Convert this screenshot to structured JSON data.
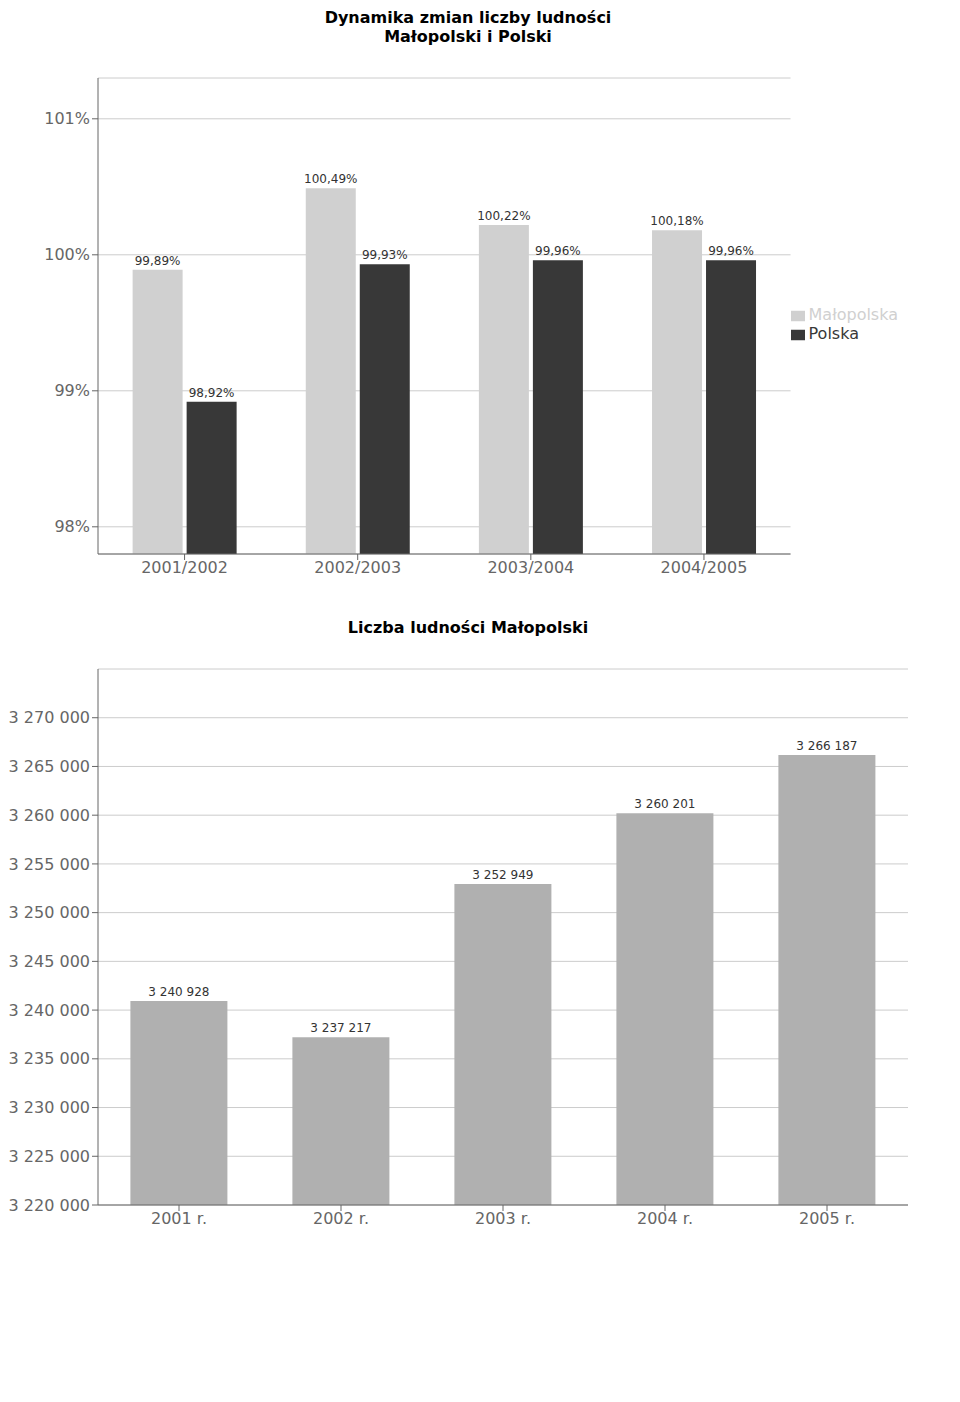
{
  "chart_data": [
    {
      "type": "bar",
      "title": "Dynamika zmian liczby ludności\nMałopolski i Polski",
      "categories": [
        "2001/2002",
        "2002/2003",
        "2003/2004",
        "2004/2005"
      ],
      "series": [
        {
          "name": "Małopolska",
          "color": "#d0d0d0",
          "values": [
            99.89,
            100.49,
            100.22,
            100.18
          ],
          "value_labels": [
            "99,89%",
            "100,49%",
            "100,22%",
            "100,18%"
          ]
        },
        {
          "name": "Polska",
          "color": "#383838",
          "values": [
            98.92,
            99.93,
            99.96,
            99.96
          ],
          "value_labels": [
            "98,92%",
            "99,93%",
            "99,96%",
            "99,96%"
          ]
        }
      ],
      "ylim": [
        97.8,
        101.3
      ],
      "yticks": [
        {
          "value": 98.0,
          "label": "98%"
        },
        {
          "value": 99.0,
          "label": "99%"
        },
        {
          "value": 100.0,
          "label": "100%"
        },
        {
          "value": 101.0,
          "label": "101%"
        }
      ],
      "grid": true,
      "legend": "right",
      "data_labels": true
    },
    {
      "type": "bar",
      "title": "Liczba ludności Małopolski",
      "categories": [
        "2001 r.",
        "2002 r.",
        "2003 r.",
        "2004 r.",
        "2005 r."
      ],
      "values": [
        3240928,
        3237217,
        3252949,
        3260201,
        3266187
      ],
      "value_labels": [
        "3 240 928",
        "3 237 217",
        "3 252 949",
        "3 260 201",
        "3 266 187"
      ],
      "color": "#b0b0b0",
      "ylim": [
        3220000,
        3275000
      ],
      "yticks": [
        {
          "value": 3220000,
          "label": "3 220 000"
        },
        {
          "value": 3225000,
          "label": "3 225 000"
        },
        {
          "value": 3230000,
          "label": "3 230 000"
        },
        {
          "value": 3235000,
          "label": "3 235 000"
        },
        {
          "value": 3240000,
          "label": "3 240 000"
        },
        {
          "value": 3245000,
          "label": "3 245 000"
        },
        {
          "value": 3250000,
          "label": "3 250 000"
        },
        {
          "value": 3255000,
          "label": "3 255 000"
        },
        {
          "value": 3260000,
          "label": "3 260 000"
        },
        {
          "value": 3265000,
          "label": "3 265 000"
        },
        {
          "value": 3270000,
          "label": "3 270 000"
        }
      ],
      "grid": true,
      "data_labels": true
    }
  ]
}
